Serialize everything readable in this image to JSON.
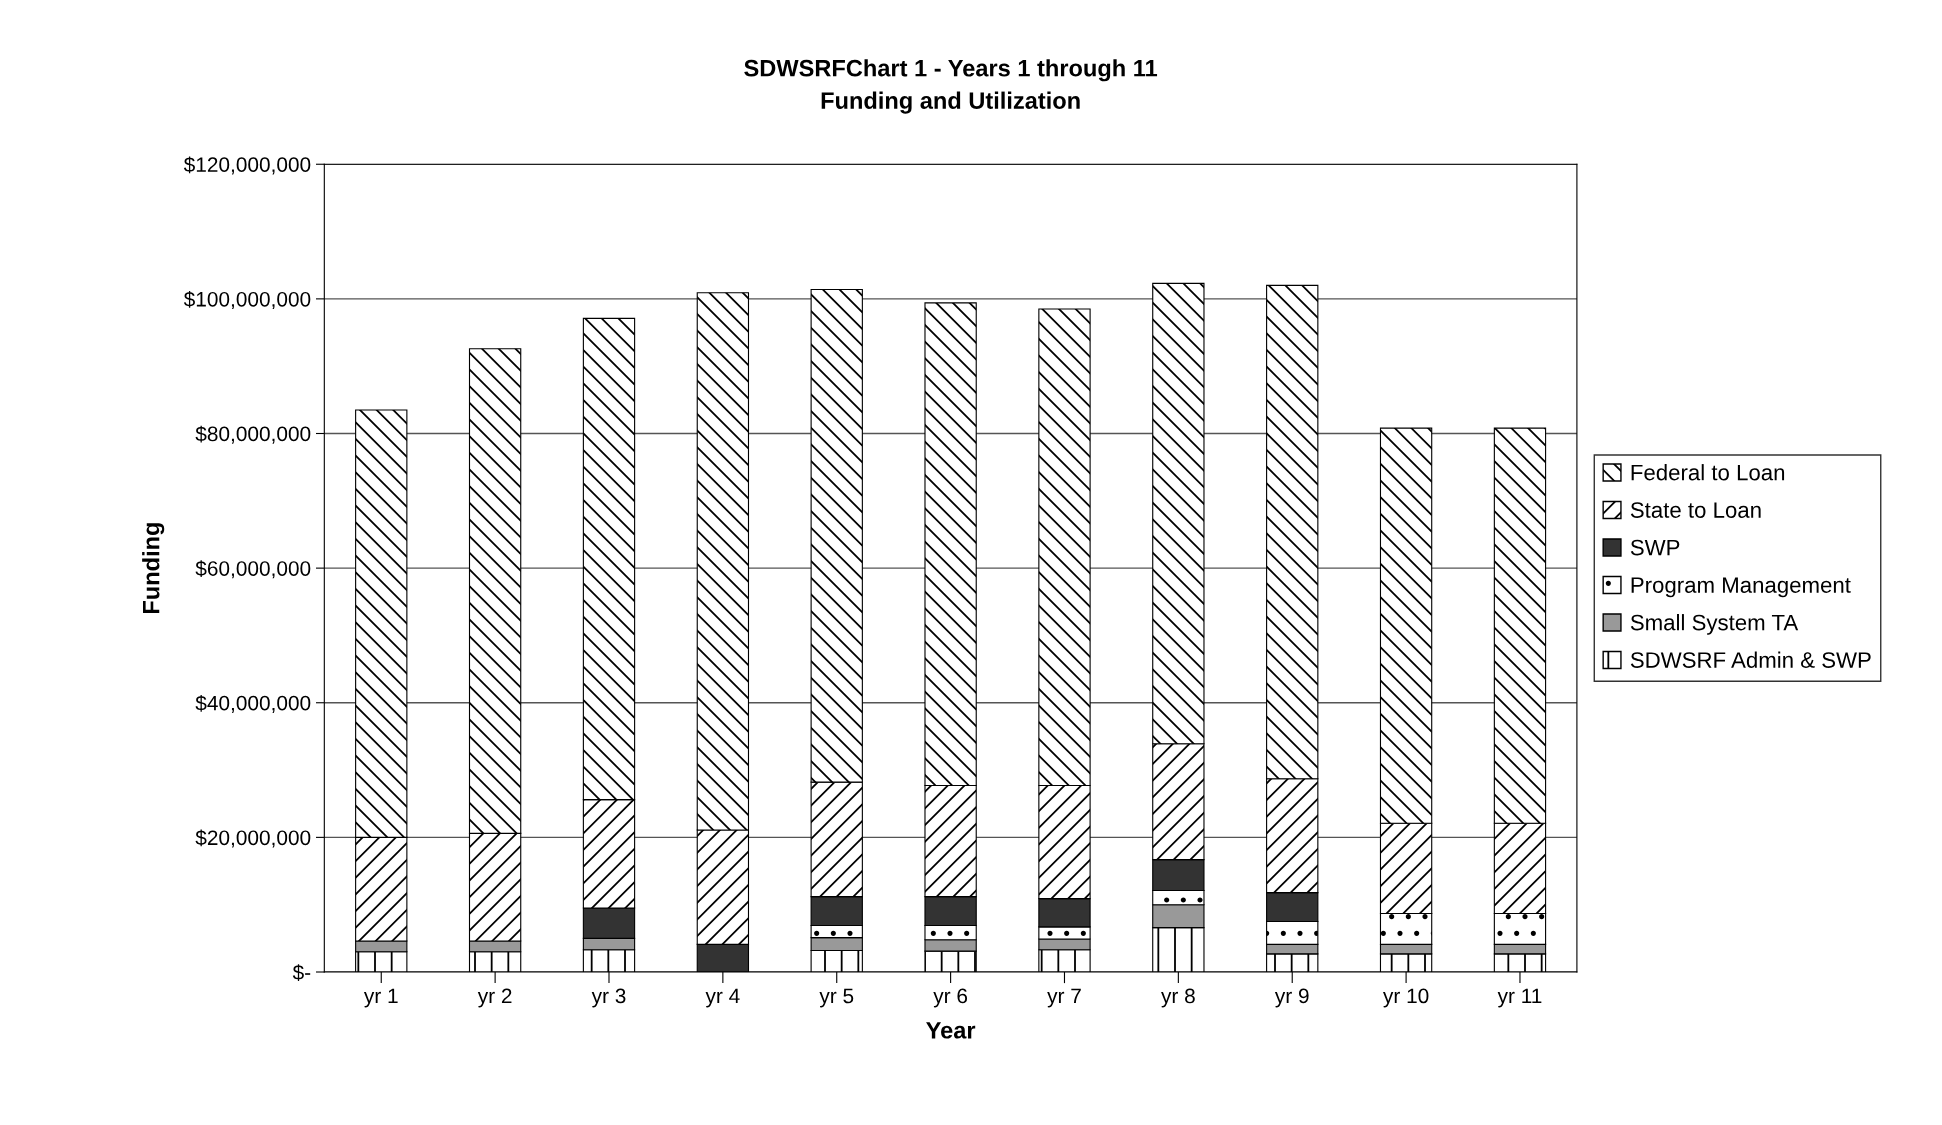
{
  "chart_data": {
    "type": "bar",
    "stacked": true,
    "title": "SDWSRFChart 1 - Years 1 through 11\nFunding and Utilization",
    "xlabel": "Year",
    "ylabel": "Funding",
    "categories": [
      "yr 1",
      "yr 2",
      "yr 3",
      "yr 4",
      "yr 5",
      "yr 6",
      "yr 7",
      "yr 8",
      "yr 9",
      "yr 10",
      "yr 11"
    ],
    "series": [
      {
        "name": "SDWSRF Admin & SWP",
        "color": "#000000",
        "values": [
          3000000,
          3000000,
          3300000,
          null,
          3200000,
          3100000,
          3300000,
          6600000,
          2700000,
          2700000,
          2700000
        ]
      },
      {
        "name": "Small System TA",
        "color": "#999999",
        "values": [
          1600000,
          1600000,
          1700000,
          null,
          1900000,
          1700000,
          1600000,
          3400000,
          1400000,
          1400000,
          1400000
        ]
      },
      {
        "name": "Program Management",
        "color": "#000000",
        "values": [
          null,
          null,
          null,
          null,
          1800000,
          2100000,
          1800000,
          2100000,
          3400000,
          4600000,
          4600000
        ]
      },
      {
        "name": "SWP",
        "color": "#333333",
        "values": [
          null,
          null,
          4500000,
          4100000,
          4300000,
          4300000,
          4200000,
          4600000,
          4300000,
          null,
          null
        ]
      },
      {
        "name": "State to Loan",
        "color": "#000000",
        "values": [
          15400000,
          16000000,
          16100000,
          17000000,
          17000000,
          16500000,
          16800000,
          17200000,
          16900000,
          13400000,
          13400000
        ]
      },
      {
        "name": "Federal to Loan",
        "color": "#000000",
        "values": [
          63500000,
          72000000,
          71500000,
          79800000,
          73200000,
          71700000,
          70800000,
          68400000,
          73300000,
          58700000,
          58700000
        ]
      }
    ],
    "ylim": [
      0,
      120000000
    ],
    "yticks": [
      {
        "value": 0,
        "label": "$-"
      },
      {
        "value": 20000000,
        "label": "$20,000,000"
      },
      {
        "value": 40000000,
        "label": "$40,000,000"
      },
      {
        "value": 60000000,
        "label": "$60,000,000"
      },
      {
        "value": 80000000,
        "label": "$80,000,000"
      },
      {
        "value": 100000000,
        "label": "$100,000,000"
      },
      {
        "value": 120000000,
        "label": "$120,000,000"
      }
    ],
    "grid": "y",
    "legend": "right"
  }
}
